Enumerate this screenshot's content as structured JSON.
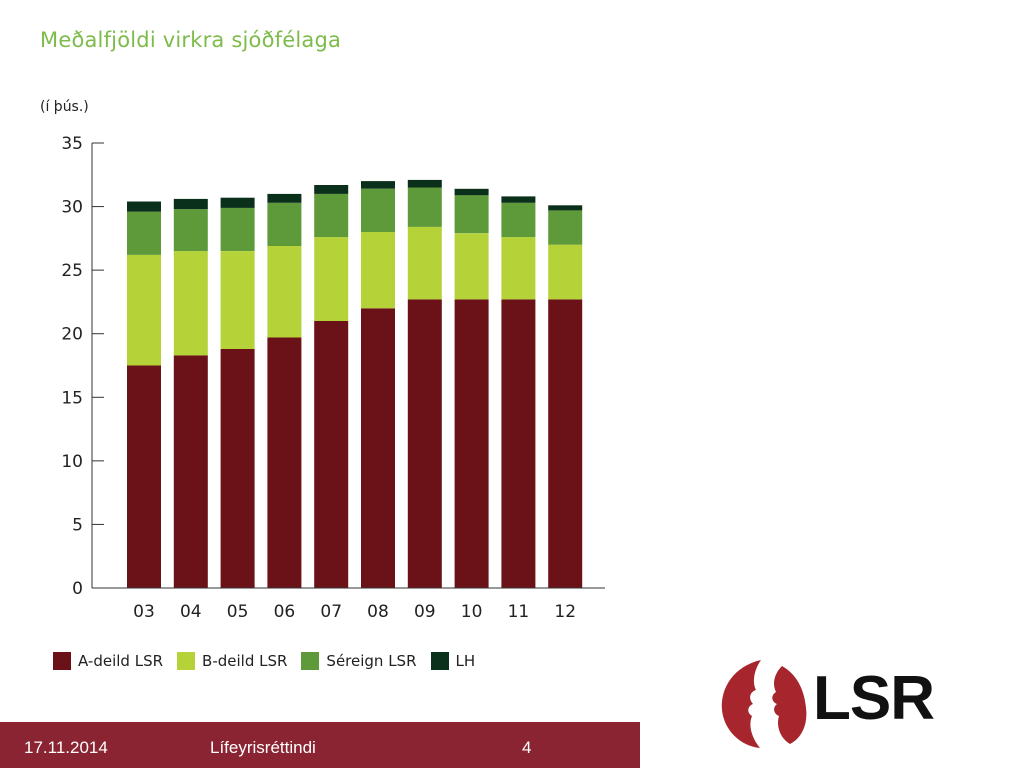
{
  "header": {
    "title": "Meðalfjöldi virkra sjóðfélaga",
    "unit_label": "(í þús.)"
  },
  "chart_data": {
    "type": "bar",
    "stacked": true,
    "categories": [
      "03",
      "04",
      "05",
      "06",
      "07",
      "08",
      "09",
      "10",
      "11",
      "12"
    ],
    "series": [
      {
        "name": "A-deild LSR",
        "color": "#6b1218",
        "values": [
          17.5,
          18.3,
          18.8,
          19.7,
          21.0,
          22.0,
          22.7,
          22.7,
          22.7,
          22.7
        ]
      },
      {
        "name": "B-deild LSR",
        "color": "#b5d338",
        "values": [
          8.7,
          8.2,
          7.7,
          7.2,
          6.6,
          6.0,
          5.7,
          5.2,
          4.9,
          4.3
        ]
      },
      {
        "name": "Séreign LSR",
        "color": "#5f9a3a",
        "values": [
          3.4,
          3.3,
          3.4,
          3.4,
          3.4,
          3.4,
          3.1,
          3.0,
          2.7,
          2.7
        ]
      },
      {
        "name": "LH",
        "color": "#0a2f1a",
        "values": [
          0.8,
          0.8,
          0.8,
          0.7,
          0.7,
          0.6,
          0.6,
          0.5,
          0.5,
          0.4
        ]
      }
    ],
    "ylim": [
      0,
      35
    ],
    "yticks": [
      0,
      5,
      10,
      15,
      20,
      25,
      30,
      35
    ],
    "xlabel": "",
    "ylabel": "(í þús.)",
    "grid": false,
    "legend_position": "bottom"
  },
  "footer": {
    "date": "17.11.2014",
    "title": "Lífeyrisréttindi",
    "page_number": "4",
    "bar_color": "#8a2432"
  },
  "logo": {
    "text": "LSR",
    "mark_color": "#a7262e"
  }
}
